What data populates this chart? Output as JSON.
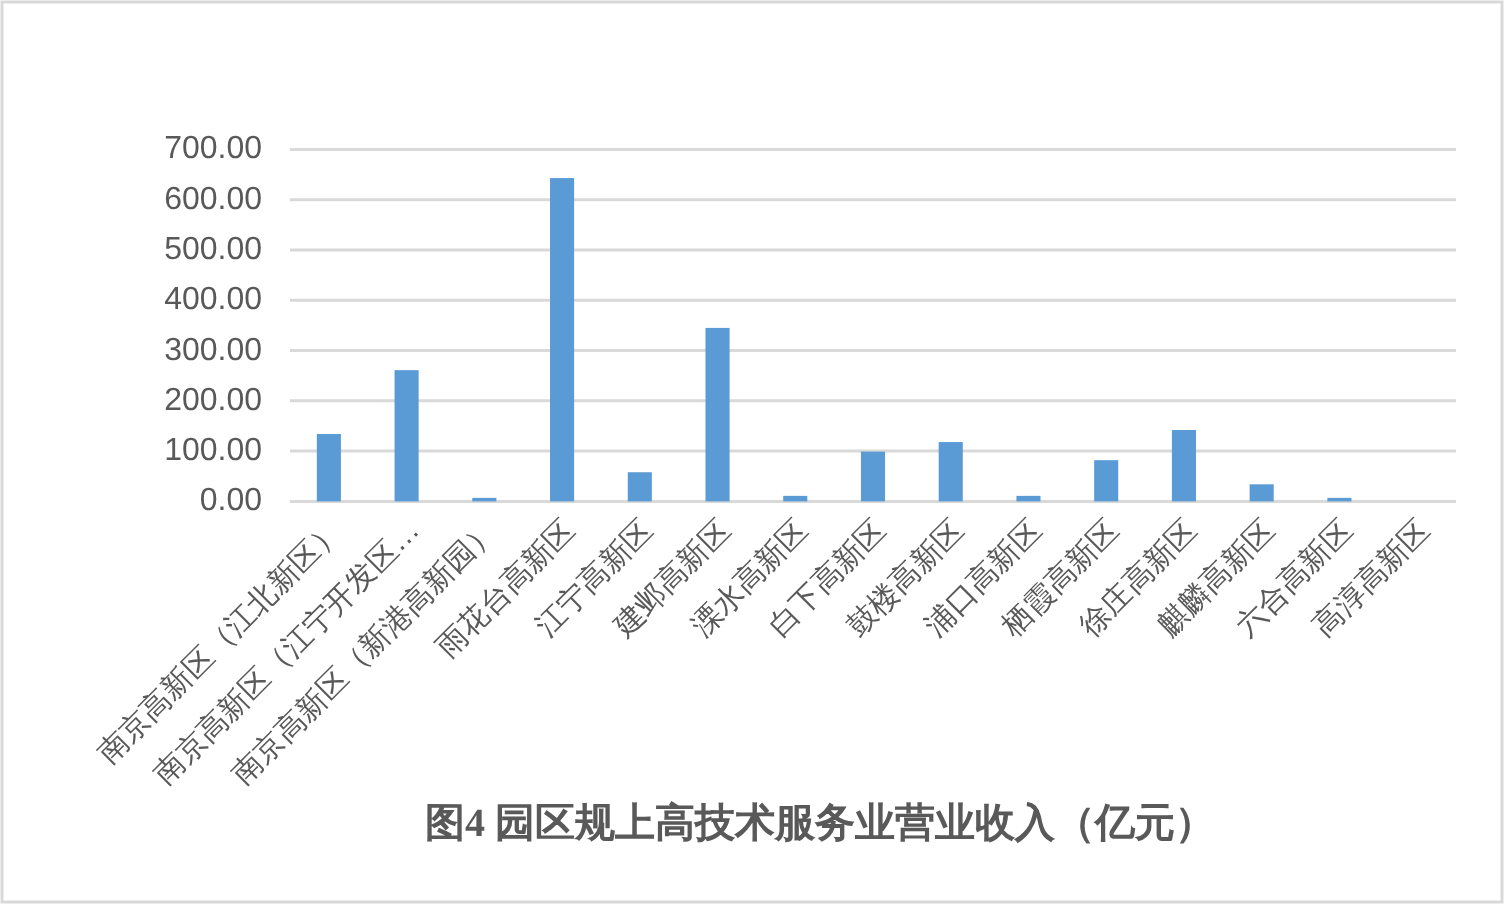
{
  "chart_data": {
    "type": "bar",
    "title": "图4 园区规上高技术服务业营业收入（亿元）",
    "categories": [
      "南京高新区（江北新区）",
      "南京高新区（江宁开发区…",
      "南京高新区（新港高新园）",
      "雨花台高新区",
      "江宁高新区",
      "建邺高新区",
      "溧水高新区",
      "白下高新区",
      "鼓楼高新区",
      "浦口高新区",
      "栖霞高新区",
      "徐庄高新区",
      "麒麟高新区",
      "六合高新区",
      "高淳高新区"
    ],
    "values": [
      134,
      261,
      7,
      643,
      58,
      345,
      11,
      99,
      118,
      11,
      82,
      142,
      34,
      7,
      0
    ],
    "color": "#5b9bd5",
    "ylim": [
      0,
      700
    ],
    "yticks": [
      {
        "value": 0,
        "label": "0.00"
      },
      {
        "value": 100,
        "label": "100.00"
      },
      {
        "value": 200,
        "label": "200.00"
      },
      {
        "value": 300,
        "label": "300.00"
      },
      {
        "value": 400,
        "label": "400.00"
      },
      {
        "value": 500,
        "label": "500.00"
      },
      {
        "value": 600,
        "label": "600.00"
      },
      {
        "value": 700,
        "label": "700.00"
      }
    ],
    "grid": "y"
  }
}
